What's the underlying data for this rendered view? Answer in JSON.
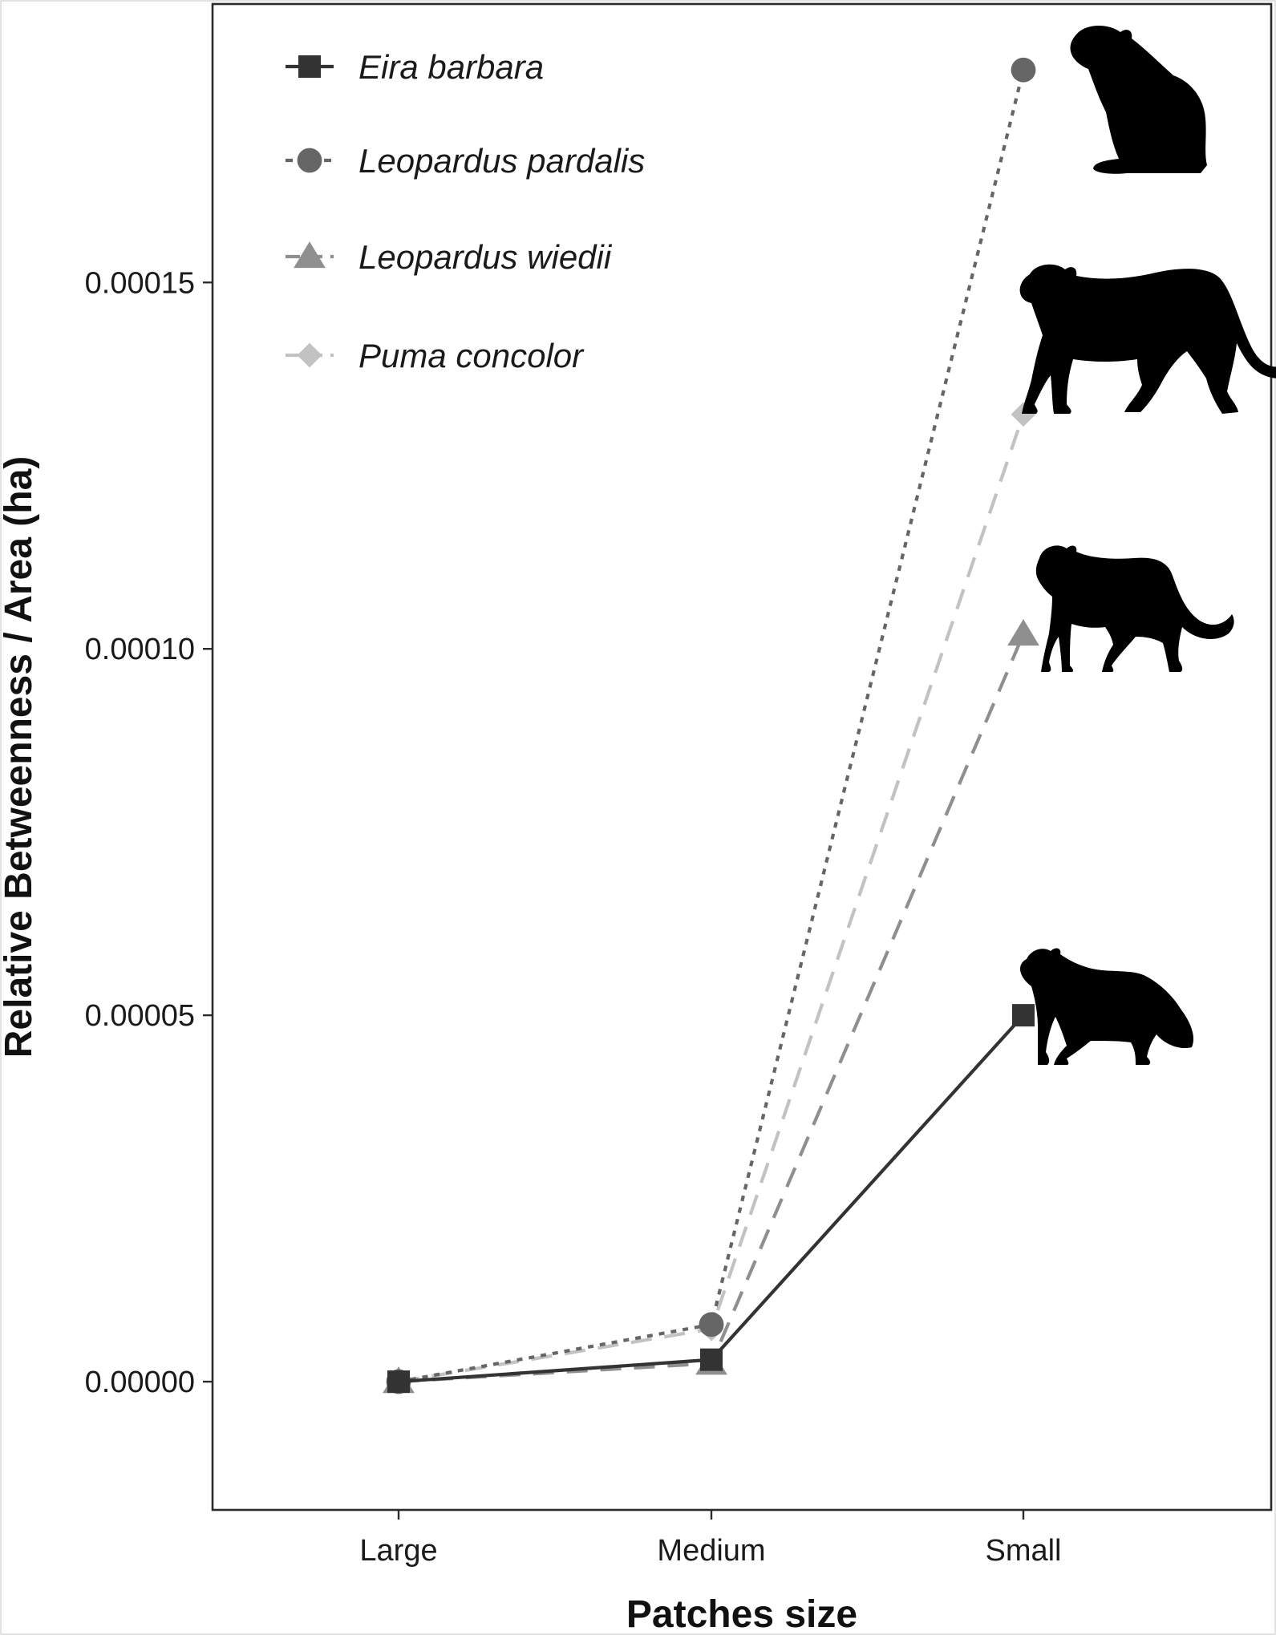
{
  "chart_data": {
    "type": "line",
    "categories": [
      "Large",
      "Medium",
      "Small"
    ],
    "xlabel": "Patches size",
    "ylabel": "Relative Betweenness / Area (ha)",
    "ylim": [
      -1.75e-05,
      0.000188
    ],
    "yticks": [
      0,
      5e-05,
      0.0001,
      0.00015
    ],
    "ytick_labels": [
      "0.00000",
      "0.00005",
      "0.00010",
      "0.00015"
    ],
    "grid": false,
    "legend_position": "top-left",
    "series": [
      {
        "name": "Eira barbara",
        "values": [
          0.0,
          3e-06,
          5e-05
        ],
        "color": "#333333",
        "marker": "square",
        "line_style": "solid"
      },
      {
        "name": "Leopardus pardalis",
        "values": [
          0.0,
          7.8e-06,
          0.000179
        ],
        "color": "#666666",
        "marker": "circle",
        "line_style": "dotted"
      },
      {
        "name": "Leopardus wiedii",
        "values": [
          0.0,
          2.5e-06,
          0.000102
        ],
        "color": "#8f8f8f",
        "marker": "triangle",
        "line_style": "dashed"
      },
      {
        "name": "Puma concolor",
        "values": [
          0.0,
          7.2e-06,
          0.000132
        ],
        "color": "#c2c2c2",
        "marker": "diamond",
        "line_style": "dashed"
      }
    ]
  },
  "silhouettes": [
    {
      "name": "ocelot-sitting-icon"
    },
    {
      "name": "puma-walking-icon"
    },
    {
      "name": "margay-standing-icon"
    },
    {
      "name": "tayra-icon"
    }
  ]
}
